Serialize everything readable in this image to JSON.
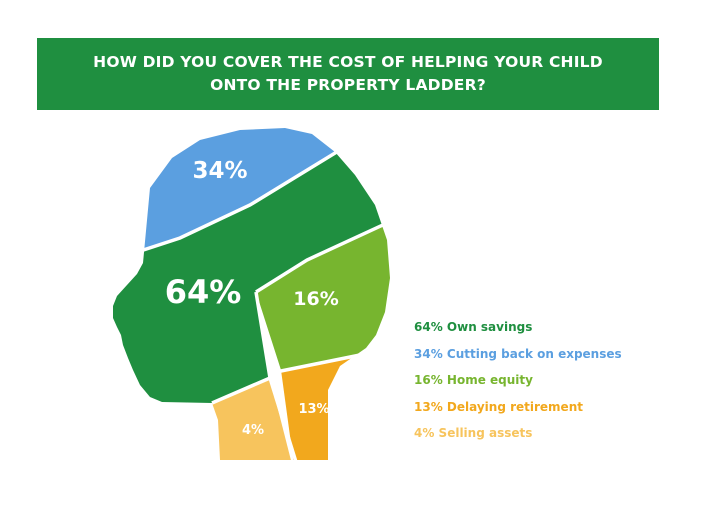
{
  "title": "HOW DID YOU COVER THE COST OF HELPING YOUR CHILD ONTO THE PROPERTY LADDER?",
  "chart_data": {
    "type": "pie",
    "title": "HOW DID YOU COVER THE COST OF HELPING YOUR CHILD ONTO THE PROPERTY LADDER?",
    "unit": "%",
    "categories": [
      "Own savings",
      "Cutting back on expenses",
      "Home equity",
      "Delaying retirement",
      "Selling assets"
    ],
    "values": [
      64,
      34,
      16,
      13,
      4
    ],
    "segment_labels": [
      "64%",
      "34%",
      "16%",
      "13%",
      "4%"
    ],
    "legend_labels": [
      "64% Own savings",
      "34% Cutting back on expenses",
      "16%  Home equity",
      "13% Delaying retirement",
      "4% Selling assets"
    ],
    "colors": [
      "#1f8f40",
      "#5b9fe0",
      "#77b52f",
      "#f2a81d",
      "#f7c45d"
    ],
    "legend_placement": "right"
  }
}
